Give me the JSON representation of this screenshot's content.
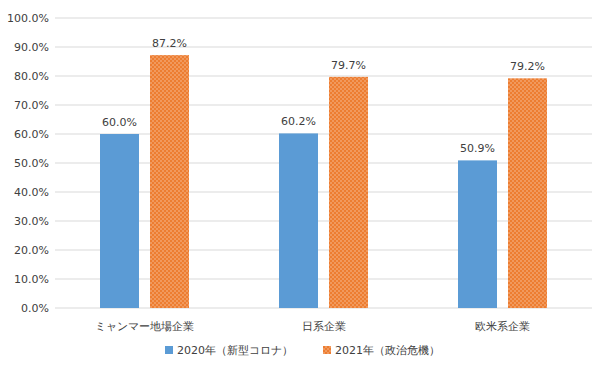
{
  "chart_data": {
    "type": "bar",
    "categories": [
      "ミャンマー地場企業",
      "日系企業",
      "欧米系企業"
    ],
    "series": [
      {
        "name": "2020年（新型コロナ）",
        "color": "#5b9bd5",
        "values": [
          60.0,
          60.2,
          50.9
        ],
        "value_labels": [
          "60.0%",
          "60.2%",
          "50.9%"
        ]
      },
      {
        "name": "2021年（政治危機）",
        "color": "#ed7d31",
        "values": [
          87.2,
          79.7,
          79.2
        ],
        "value_labels": [
          "87.2%",
          "79.7%",
          "79.2%"
        ]
      }
    ],
    "ylim": [
      0,
      100
    ],
    "yticks": [
      {
        "value": 0,
        "label": "0.0%"
      },
      {
        "value": 10,
        "label": "10.0%"
      },
      {
        "value": 20,
        "label": "20.0%"
      },
      {
        "value": 30,
        "label": "30.0%"
      },
      {
        "value": 40,
        "label": "40.0%"
      },
      {
        "value": 50,
        "label": "50.0%"
      },
      {
        "value": 60,
        "label": "60.0%"
      },
      {
        "value": 70,
        "label": "70.0%"
      },
      {
        "value": 80,
        "label": "80.0%"
      },
      {
        "value": 90,
        "label": "90.0%"
      },
      {
        "value": 100,
        "label": "100.0%"
      }
    ],
    "grid": true,
    "legend": "bottom",
    "data_labels": true
  }
}
